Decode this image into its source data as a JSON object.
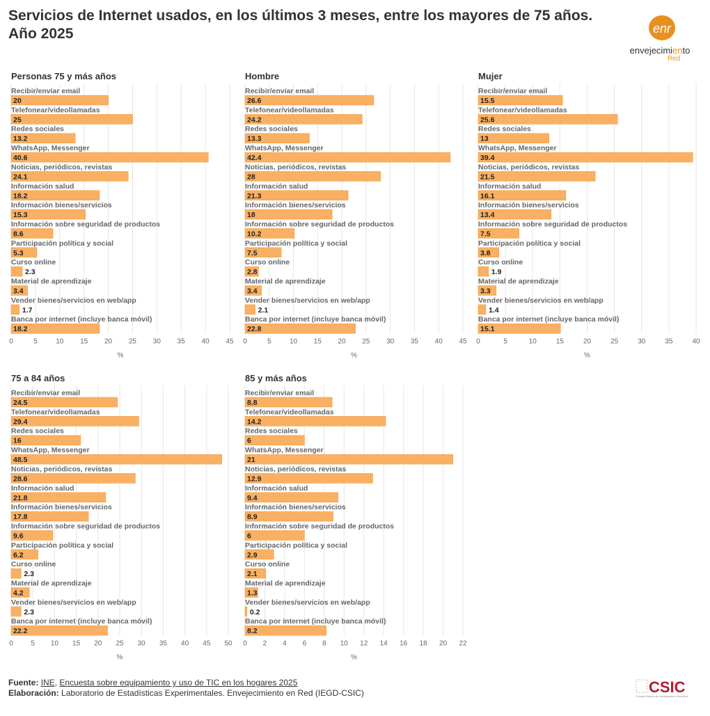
{
  "title": "Servicios de Internet usados, en los últimos 3 meses, entre los mayores de 75 años. Año 2025",
  "logo": {
    "line1": "envejecimiento",
    "line2": "Red",
    "mark": "enr"
  },
  "colors": {
    "bar": "#f9b062",
    "bar_border": "#f29a3c",
    "label": "#666666",
    "value": "#222222",
    "grid": "#e6e6e6",
    "logo_orange": "#e8901f",
    "csic_red": "#b01c2e"
  },
  "categories": [
    "Recibir/enviar email",
    "Telefonear/videollamadas",
    "Redes sociales",
    "WhatsApp, Messenger",
    "Noticias, periódicos, revistas",
    "Información salud",
    "Información bienes/servicios",
    "Información sobre seguridad de productos",
    "Participación política y social",
    "Curso online",
    "Material de aprendizaje",
    "Vender bienes/servicios en web/app",
    "Banca por internet (incluye banca móvil)"
  ],
  "chart_data": [
    {
      "type": "bar",
      "orientation": "horizontal",
      "title": "Personas 75 y más años",
      "xlabel": "%",
      "xlim": [
        0,
        45
      ],
      "ticks": [
        0,
        5,
        10,
        15,
        20,
        25,
        30,
        35,
        40,
        45
      ],
      "grid": true,
      "values": [
        20,
        25,
        13.2,
        40.6,
        24.1,
        18.2,
        15.3,
        8.6,
        5.3,
        2.3,
        3.4,
        1.7,
        18.2
      ]
    },
    {
      "type": "bar",
      "orientation": "horizontal",
      "title": "Hombre",
      "xlabel": "%",
      "xlim": [
        0,
        45
      ],
      "ticks": [
        0,
        5,
        10,
        15,
        20,
        25,
        30,
        35,
        40,
        45
      ],
      "grid": true,
      "values": [
        26.6,
        24.2,
        13.3,
        42.4,
        28,
        21.3,
        18,
        10.2,
        7.5,
        2.8,
        3.4,
        2.1,
        22.8
      ]
    },
    {
      "type": "bar",
      "orientation": "horizontal",
      "title": "Mujer",
      "xlabel": "%",
      "xlim": [
        0,
        40
      ],
      "ticks": [
        0,
        5,
        10,
        15,
        20,
        25,
        30,
        35,
        40
      ],
      "grid": true,
      "values": [
        15.5,
        25.6,
        13,
        39.4,
        21.5,
        16.1,
        13.4,
        7.5,
        3.8,
        1.9,
        3.3,
        1.4,
        15.1
      ]
    },
    {
      "type": "bar",
      "orientation": "horizontal",
      "title": "75 a 84 años",
      "xlabel": "%",
      "xlim": [
        0,
        50
      ],
      "ticks": [
        0,
        5,
        10,
        15,
        20,
        25,
        30,
        35,
        40,
        45,
        50
      ],
      "grid": true,
      "values": [
        24.5,
        29.4,
        16,
        48.5,
        28.6,
        21.8,
        17.8,
        9.6,
        6.2,
        2.3,
        4.2,
        2.3,
        22.2
      ]
    },
    {
      "type": "bar",
      "orientation": "horizontal",
      "title": "85 y más años",
      "xlabel": "%",
      "xlim": [
        0,
        22
      ],
      "ticks": [
        0,
        2,
        4,
        6,
        8,
        10,
        12,
        14,
        16,
        18,
        20,
        22
      ],
      "grid": true,
      "values": [
        8.8,
        14.2,
        6,
        21,
        12.9,
        9.4,
        8.9,
        6,
        2.9,
        2.1,
        1.3,
        0.2,
        8.2
      ]
    }
  ],
  "footer": {
    "source_label": "Fuente:",
    "source_link1": "INE",
    "source_sep": ", ",
    "source_link2": "Encuesta sobre equipamiento y uso de TIC en los hogares 2025",
    "made_label": "Elaboración:",
    "made_text": "Laboratorio de Estadísticas Experimentales. Envejecimiento en Red (IEGD-CSIC)"
  },
  "csic": {
    "text": "CSIC",
    "sub": "Consejo Superior de Investigaciones Científicas"
  }
}
